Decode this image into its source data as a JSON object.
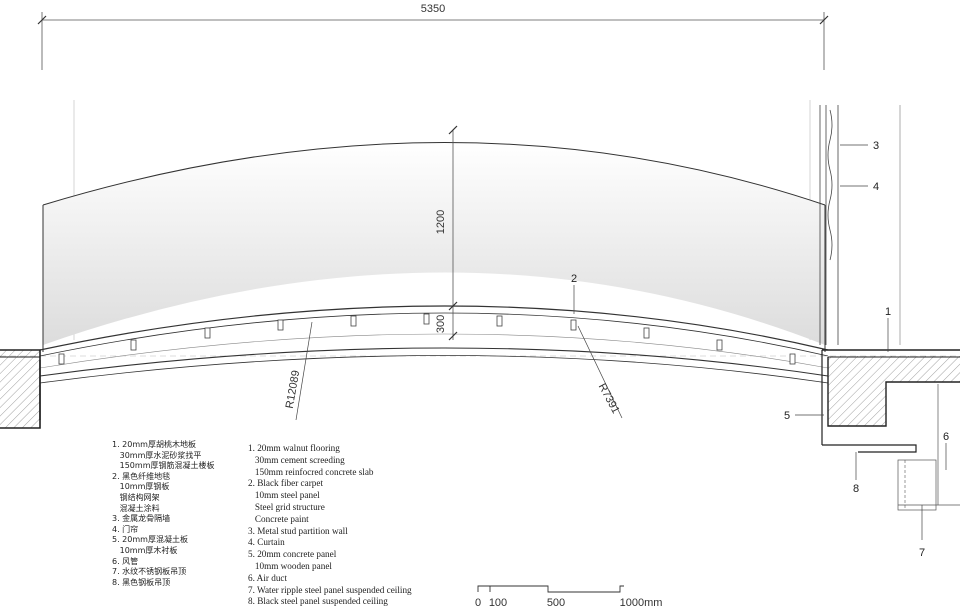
{
  "dimensions": {
    "width_total": "5350",
    "height_arch": "1200",
    "height_slab": "300",
    "radius_outer": "R12089",
    "radius_inner": "R7391"
  },
  "callouts": [
    "1",
    "2",
    "3",
    "4",
    "5",
    "6",
    "7",
    "8"
  ],
  "legend_cn": [
    "1. 20mm厚胡桃木地板",
    "   30mm厚水泥砂浆找平",
    "   150mm厚钢筋混凝土楼板",
    "2. 黑色纤维地毯",
    "   10mm厚钢板",
    "   钢结构网架",
    "   混凝土涂料",
    "3. 金属龙骨隔墙",
    "4. 门帘",
    "5. 20mm厚混凝土板",
    "   10mm厚木衬板",
    "6. 风管",
    "7. 水纹不锈钢板吊顶",
    "8. 黑色钢板吊顶"
  ],
  "legend_en": [
    "1. 20mm walnut flooring",
    "   30mm cement screeding",
    "   150mm reinfocred concrete slab",
    "2. Black fiber carpet",
    "   10mm steel panel",
    "   Steel grid structure",
    "   Concrete paint",
    "3. Metal stud partition wall",
    "4. Curtain",
    "5. 20mm concrete panel",
    "   10mm wooden panel",
    "6. Air duct",
    "7. Water ripple steel panel suspended ceiling",
    "8. Black steel panel suspended ceiling"
  ],
  "scale_bar": {
    "labels": [
      "0",
      "100",
      "500",
      "1000mm"
    ]
  }
}
